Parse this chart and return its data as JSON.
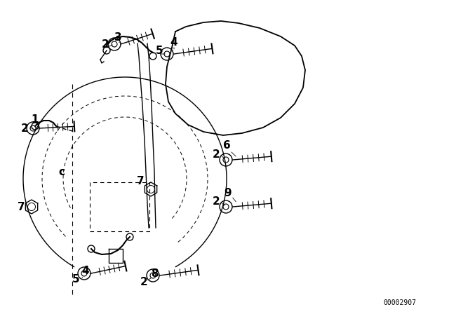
{
  "bg_color": "#ffffff",
  "line_color": "#000000",
  "part_number": "00002907",
  "fig_width": 6.4,
  "fig_height": 4.48,
  "dpi": 100,
  "xlim": [
    0,
    640
  ],
  "ylim": [
    0,
    448
  ]
}
